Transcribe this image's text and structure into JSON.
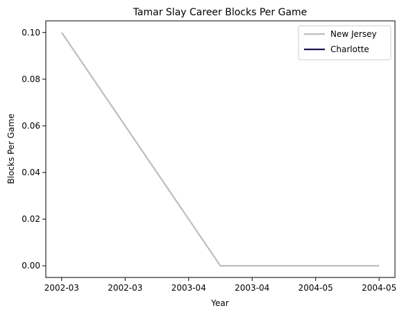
{
  "chart_data": {
    "type": "line",
    "title": "Tamar Slay Career Blocks Per Game",
    "xlabel": "Year",
    "ylabel": "Blocks Per Game",
    "x_tick_labels": [
      "2002-03",
      "2002-03",
      "2003-04",
      "2003-04",
      "2004-05",
      "2004-05"
    ],
    "y_ticks": [
      0.0,
      0.02,
      0.04,
      0.06,
      0.08,
      0.1
    ],
    "y_tick_labels": [
      "0.00",
      "0.02",
      "0.04",
      "0.06",
      "0.08",
      "0.10"
    ],
    "xlim": [
      -0.1,
      2.1
    ],
    "ylim": [
      -0.005,
      0.105
    ],
    "grid": false,
    "legend_position": "top-right",
    "series": [
      {
        "name": "New Jersey",
        "color": "#bdbdbd",
        "points": [
          {
            "x": 0.0,
            "y": 0.1
          },
          {
            "x": 1.0,
            "y": 0.0
          },
          {
            "x": 2.0,
            "y": 0.0
          }
        ]
      },
      {
        "name": "Charlotte",
        "color": "#1c1450",
        "points": []
      }
    ]
  }
}
